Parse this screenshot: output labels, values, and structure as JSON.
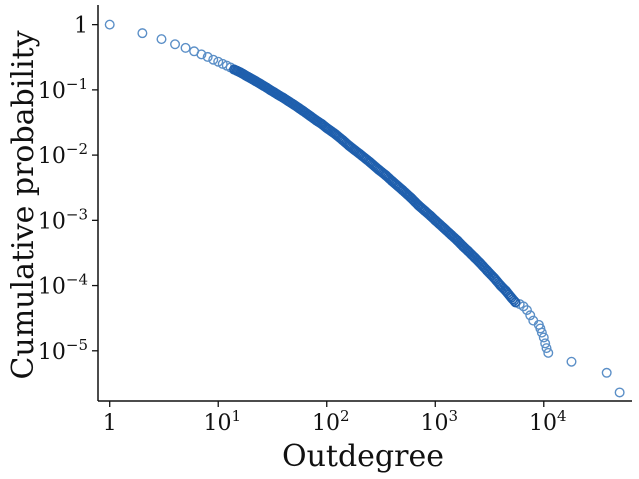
{
  "chart_data": {
    "type": "scatter",
    "title": "",
    "xlabel": "Outdegree",
    "ylabel": "Cumulative probability",
    "xscale": "log",
    "yscale": "log",
    "xlim": [
      0.78,
      65000
    ],
    "ylim": [
      1.7e-06,
      2.0
    ],
    "grid": false,
    "marker": "open-circle",
    "colors": {
      "marker": "#5b8fc7",
      "marker_dense": "#1f5fad",
      "axes": "#111111"
    },
    "x_ticks": [
      {
        "value": 1,
        "base": "1",
        "exp": ""
      },
      {
        "value": 10,
        "base": "10",
        "exp": "1"
      },
      {
        "value": 100,
        "base": "10",
        "exp": "2"
      },
      {
        "value": 1000,
        "base": "10",
        "exp": "3"
      },
      {
        "value": 10000,
        "base": "10",
        "exp": "4"
      }
    ],
    "y_ticks": [
      {
        "value": 1,
        "base": "1",
        "exp": ""
      },
      {
        "value": 0.1,
        "base": "10",
        "exp": "−1"
      },
      {
        "value": 0.01,
        "base": "10",
        "exp": "−2"
      },
      {
        "value": 0.001,
        "base": "10",
        "exp": "−3"
      },
      {
        "value": 0.0001,
        "base": "10",
        "exp": "−4"
      },
      {
        "value": 1e-05,
        "base": "10",
        "exp": "−5"
      }
    ],
    "series": [
      {
        "points": [
          [
            1,
            1.0
          ],
          [
            2,
            0.74
          ],
          [
            3,
            0.6
          ],
          [
            4,
            0.5
          ],
          [
            5,
            0.44
          ],
          [
            6,
            0.39
          ],
          [
            7,
            0.35
          ],
          [
            8,
            0.32
          ],
          [
            9,
            0.29
          ],
          [
            10,
            0.27
          ],
          [
            11,
            0.25
          ],
          [
            12,
            0.235
          ],
          [
            13,
            0.22
          ],
          [
            14,
            0.205
          ],
          [
            15,
            0.195
          ],
          [
            16,
            0.185
          ],
          [
            17,
            0.175
          ],
          [
            18,
            0.165
          ],
          [
            19,
            0.157
          ],
          [
            20,
            0.15
          ],
          [
            22,
            0.137
          ],
          [
            24,
            0.126
          ],
          [
            26,
            0.116
          ],
          [
            28,
            0.108
          ],
          [
            30,
            0.1
          ],
          [
            33,
            0.091
          ],
          [
            36,
            0.083
          ],
          [
            40,
            0.075
          ],
          [
            45,
            0.066
          ],
          [
            50,
            0.059
          ],
          [
            55,
            0.053
          ],
          [
            60,
            0.048
          ],
          [
            70,
            0.04
          ],
          [
            80,
            0.034
          ],
          [
            90,
            0.03
          ],
          [
            100,
            0.026
          ],
          [
            120,
            0.021
          ],
          [
            140,
            0.017
          ],
          [
            160,
            0.014
          ],
          [
            180,
            0.012
          ],
          [
            200,
            0.0105
          ],
          [
            250,
            0.0078
          ],
          [
            300,
            0.006
          ],
          [
            350,
            0.0049
          ],
          [
            400,
            0.004
          ],
          [
            500,
            0.0029
          ],
          [
            600,
            0.0022
          ],
          [
            700,
            0.0017
          ],
          [
            800,
            0.0014
          ],
          [
            900,
            0.00118
          ],
          [
            1000,
            0.001
          ],
          [
            1200,
            0.00076
          ],
          [
            1400,
            0.0006
          ],
          [
            1600,
            0.00049
          ],
          [
            1800,
            0.0004
          ],
          [
            2000,
            0.00034
          ],
          [
            2300,
            0.00027
          ],
          [
            2600,
            0.00022
          ],
          [
            3000,
            0.00017
          ],
          [
            3500,
            0.00013
          ],
          [
            4000,
            0.0001
          ],
          [
            4500,
            8.2e-05
          ],
          [
            5000,
            6.6e-05
          ],
          [
            5500,
            5.5e-05
          ],
          [
            6000,
            5.2e-05
          ],
          [
            6500,
            4.8e-05
          ],
          [
            7000,
            4.2e-05
          ],
          [
            7500,
            3.5e-05
          ],
          [
            8000,
            2.9e-05
          ],
          [
            9000,
            2.5e-05
          ],
          [
            9300,
            2.2e-05
          ],
          [
            9600,
            1.9e-05
          ],
          [
            10000,
            1.6e-05
          ],
          [
            10300,
            1.3e-05
          ],
          [
            10600,
            1.1e-05
          ],
          [
            11000,
            9.3e-06
          ],
          [
            18000,
            6.8e-06
          ],
          [
            38000,
            4.6e-06
          ],
          [
            50000,
            2.3e-06
          ]
        ]
      }
    ]
  }
}
